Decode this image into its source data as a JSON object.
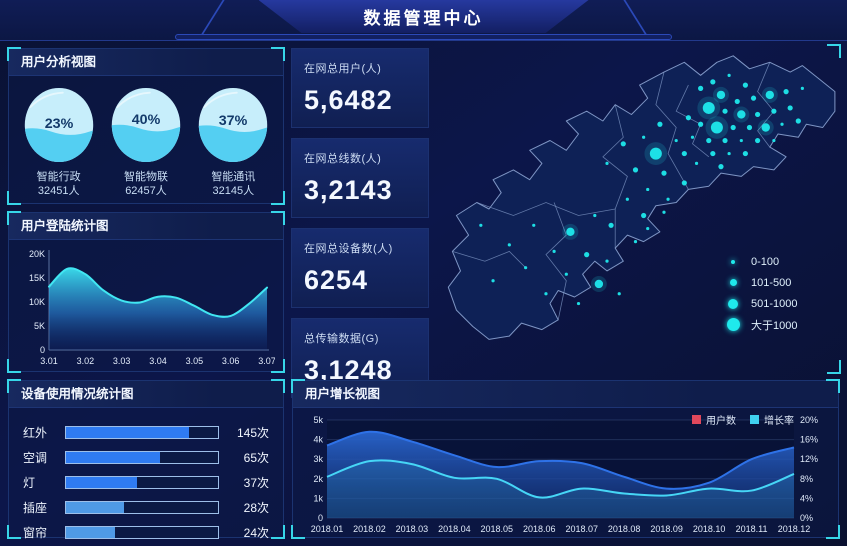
{
  "header": {
    "title": "数据管理中心"
  },
  "colors": {
    "accent_cyan": "#37d6e8",
    "gauge_light": "#c7eefb",
    "gauge_liquid": "#54cff2",
    "gauge_text": "#133a6a",
    "dot_cyan": "#1fe9ec",
    "login_line": "#41e6f2",
    "growth_user_line": "#2e72e8",
    "growth_rate_line": "#46d6f6",
    "legend_user_swatch": "#e0485c",
    "legend_rate_swatch": "#40d1f0"
  },
  "user_analysis": {
    "title": "用户分析视图",
    "gauges": [
      {
        "percent": 23,
        "label": "智能行政",
        "count": "32451人"
      },
      {
        "percent": 40,
        "label": "智能物联",
        "count": "62457人"
      },
      {
        "percent": 37,
        "label": "智能通讯",
        "count": "32145人"
      }
    ]
  },
  "stats": [
    {
      "label": "在网总用户(人)",
      "value": "5,6482"
    },
    {
      "label": "在网总线数(人)",
      "value": "3,2143"
    },
    {
      "label": "在网总设备数(人)",
      "value": "6254"
    },
    {
      "label": "总传输数据(G)",
      "value": "3,1248"
    }
  ],
  "chart_data": [
    {
      "id": "login",
      "type": "area",
      "title": "用户登陆统计图",
      "x_ticks": [
        "3.01",
        "3.02",
        "3.03",
        "3.04",
        "3.05",
        "3.06",
        "3.07"
      ],
      "y_ticks": [
        "0",
        "5K",
        "10K",
        "15K",
        "20K"
      ],
      "ylim_k": [
        0,
        20
      ],
      "values_k": [
        13.2,
        16.9,
        15.8,
        12.4,
        10.3,
        9.9,
        11.1,
        10.9,
        9.2,
        7.3,
        7.1,
        9.6,
        13.0
      ]
    },
    {
      "id": "device",
      "type": "bar",
      "title": "设备使用情况统计图",
      "unit": "次",
      "items": [
        {
          "label": "红外",
          "value": 145,
          "display": "145次",
          "ratio": 0.81,
          "color": "#2f7bf2"
        },
        {
          "label": "空调",
          "value": 65,
          "display": "65次",
          "ratio": 0.62,
          "color": "#2f7bf2"
        },
        {
          "label": "灯",
          "value": 37,
          "display": "37次",
          "ratio": 0.47,
          "color": "#2f7bf2"
        },
        {
          "label": "插座",
          "value": 28,
          "display": "28次",
          "ratio": 0.38,
          "color": "#4f9ae6"
        },
        {
          "label": "窗帘",
          "value": 24,
          "display": "24次",
          "ratio": 0.32,
          "color": "#4f9ae6"
        }
      ]
    },
    {
      "id": "growth",
      "type": "area",
      "title": "用户增长视图",
      "categories": [
        "2018.01",
        "2018.02",
        "2018.03",
        "2018.04",
        "2018.05",
        "2018.06",
        "2018.07",
        "2018.08",
        "2018.09",
        "2018.10",
        "2018.11",
        "2018.12"
      ],
      "left_ticks": [
        "0",
        "1k",
        "2k",
        "3k",
        "4k",
        "5k"
      ],
      "right_ticks": [
        "0%",
        "4%",
        "8%",
        "12%",
        "16%",
        "20%"
      ],
      "left_lim_k": [
        0,
        5
      ],
      "right_lim_pct": [
        0,
        20
      ],
      "legend": [
        {
          "label": "用户数",
          "color": "#e0485c"
        },
        {
          "label": "增长率",
          "color": "#40d1f0"
        }
      ],
      "series": [
        {
          "name": "用户数",
          "axis": "left",
          "line_color": "#2e72e8",
          "values_k": [
            3.7,
            4.4,
            3.9,
            3.2,
            2.6,
            2.9,
            2.8,
            2.1,
            1.5,
            1.8,
            3.0,
            3.6
          ]
        },
        {
          "name": "增长率",
          "axis": "right",
          "line_color": "#46d6f6",
          "values_pct": [
            8.4,
            11.6,
            11.0,
            8.2,
            8.0,
            4.2,
            6.0,
            5.0,
            4.6,
            6.0,
            5.6,
            9.0
          ]
        }
      ]
    },
    {
      "id": "map",
      "type": "scatter",
      "legend": [
        {
          "label": "0-100",
          "size": 1
        },
        {
          "label": "101-500",
          "size": 2
        },
        {
          "label": "501-1000",
          "size": 3
        },
        {
          "label": "大于1000",
          "size": 4
        }
      ],
      "points": [
        [
          66,
          13,
          2
        ],
        [
          69,
          11,
          2
        ],
        [
          73,
          9,
          1
        ],
        [
          77,
          12,
          2
        ],
        [
          71,
          15,
          3
        ],
        [
          75,
          17,
          2
        ],
        [
          79,
          16,
          2
        ],
        [
          83,
          15,
          3
        ],
        [
          87,
          14,
          2
        ],
        [
          91,
          13,
          1
        ],
        [
          68,
          19,
          4
        ],
        [
          72,
          20,
          2
        ],
        [
          76,
          21,
          3
        ],
        [
          80,
          21,
          2
        ],
        [
          84,
          20,
          2
        ],
        [
          88,
          19,
          2
        ],
        [
          63,
          22,
          2
        ],
        [
          66,
          24,
          2
        ],
        [
          70,
          25,
          4
        ],
        [
          74,
          25,
          2
        ],
        [
          78,
          25,
          2
        ],
        [
          82,
          25,
          3
        ],
        [
          86,
          24,
          1
        ],
        [
          90,
          23,
          2
        ],
        [
          64,
          28,
          1
        ],
        [
          68,
          29,
          2
        ],
        [
          72,
          29,
          2
        ],
        [
          76,
          29,
          1
        ],
        [
          80,
          29,
          2
        ],
        [
          84,
          29,
          1
        ],
        [
          69,
          33,
          2
        ],
        [
          73,
          33,
          1
        ],
        [
          77,
          33,
          2
        ],
        [
          65,
          36,
          1
        ],
        [
          71,
          37,
          2
        ],
        [
          60,
          29,
          1
        ],
        [
          62,
          33,
          2
        ],
        [
          56,
          24,
          2
        ],
        [
          52,
          28,
          1
        ],
        [
          55,
          33,
          4
        ],
        [
          47,
          30,
          2
        ],
        [
          43,
          36,
          1
        ],
        [
          50,
          38,
          2
        ],
        [
          57,
          39,
          2
        ],
        [
          62,
          42,
          2
        ],
        [
          53,
          44,
          1
        ],
        [
          58,
          47,
          1
        ],
        [
          48,
          47,
          1
        ],
        [
          52,
          52,
          2
        ],
        [
          44,
          55,
          2
        ],
        [
          40,
          52,
          1
        ],
        [
          34,
          57,
          3
        ],
        [
          30,
          63,
          1
        ],
        [
          38,
          64,
          2
        ],
        [
          43,
          66,
          1
        ],
        [
          33,
          70,
          1
        ],
        [
          41,
          73,
          3
        ],
        [
          46,
          76,
          1
        ],
        [
          36,
          79,
          1
        ],
        [
          28,
          76,
          1
        ],
        [
          23,
          68,
          1
        ],
        [
          19,
          61,
          1
        ],
        [
          25,
          55,
          1
        ],
        [
          15,
          72,
          1
        ],
        [
          50,
          60,
          1
        ],
        [
          53,
          56,
          1
        ],
        [
          57,
          51,
          1
        ],
        [
          12,
          55,
          1
        ]
      ]
    }
  ]
}
